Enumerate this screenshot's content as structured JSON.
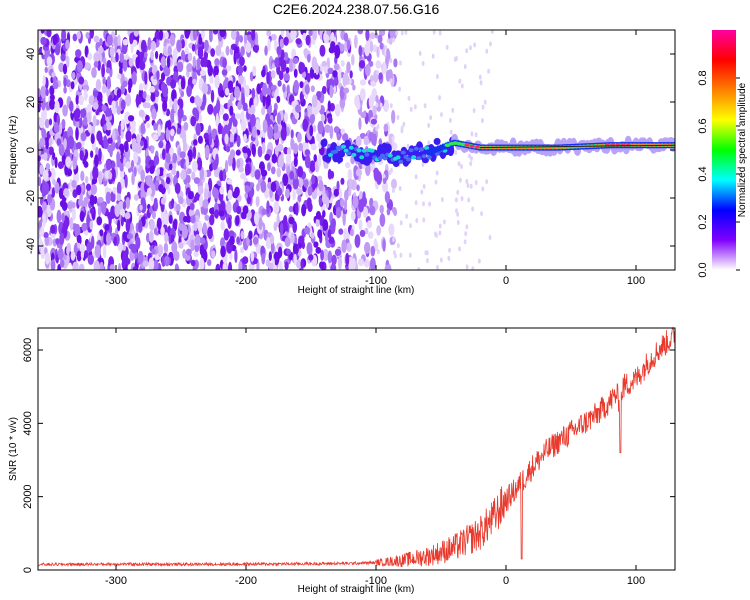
{
  "page": {
    "title": "C2E6.2024.238.07.56.G16"
  },
  "chart_data": [
    {
      "type": "heatmap",
      "title": "C2E6.2024.238.07.56.G16",
      "xlabel": "Height of straight line (km)",
      "ylabel": "Frequency (Hz)",
      "xlim": [
        -360,
        130
      ],
      "ylim": [
        -50,
        50
      ],
      "xticks": [
        -300,
        -200,
        -100,
        0,
        100
      ],
      "yticks": [
        -40,
        -20,
        0,
        20,
        40
      ],
      "colorbar": {
        "label": "Normalized spectral amplitude",
        "range": [
          0.0,
          1.0
        ],
        "ticks": [
          "0.0",
          "0.2",
          "0.4",
          "0.6",
          "0.8"
        ],
        "colors": [
          "#ffffff",
          "#8000ff",
          "#0000ff",
          "#00ffff",
          "#00ff00",
          "#ffff00",
          "#ff8000",
          "#ff0000",
          "#ff00a0"
        ]
      },
      "features": {
        "noise_region_x": [
          -360,
          -100
        ],
        "signal_start_x": -140,
        "signal_ridge": [
          {
            "x": -140,
            "y": 0
          },
          {
            "x": -110,
            "y": -2
          },
          {
            "x": -80,
            "y": -3
          },
          {
            "x": -60,
            "y": -1
          },
          {
            "x": -40,
            "y": 3
          },
          {
            "x": -20,
            "y": 1
          },
          {
            "x": 0,
            "y": 1
          },
          {
            "x": 40,
            "y": 1
          },
          {
            "x": 80,
            "y": 2
          },
          {
            "x": 130,
            "y": 2
          }
        ]
      }
    },
    {
      "type": "line",
      "xlabel": "Height of straight line (km)",
      "ylabel": "SNR (10 * v/v)",
      "xlim": [
        -360,
        130
      ],
      "ylim": [
        0,
        6600
      ],
      "xticks": [
        -300,
        -200,
        -100,
        0,
        100
      ],
      "yticks": [
        0,
        2000,
        4000,
        6000
      ],
      "color": "#e8392c",
      "series": [
        {
          "x": [
            -360,
            -300,
            -250,
            -200,
            -150,
            -120,
            -100,
            -80,
            -60,
            -40,
            -30,
            -20,
            -10,
            0,
            10,
            20,
            30,
            40,
            50,
            60,
            70,
            80,
            85,
            88,
            90,
            100,
            110,
            120,
            130
          ],
          "y": [
            150,
            160,
            155,
            160,
            170,
            180,
            200,
            260,
            380,
            600,
            800,
            1000,
            1400,
            1900,
            2300,
            2800,
            3200,
            3500,
            3750,
            4000,
            4250,
            4600,
            4800,
            4500,
            5000,
            5200,
            5700,
            6100,
            6400
          ]
        }
      ],
      "dips": [
        {
          "x": 12,
          "y": 300
        },
        {
          "x": 88,
          "y": 3200
        }
      ]
    }
  ]
}
